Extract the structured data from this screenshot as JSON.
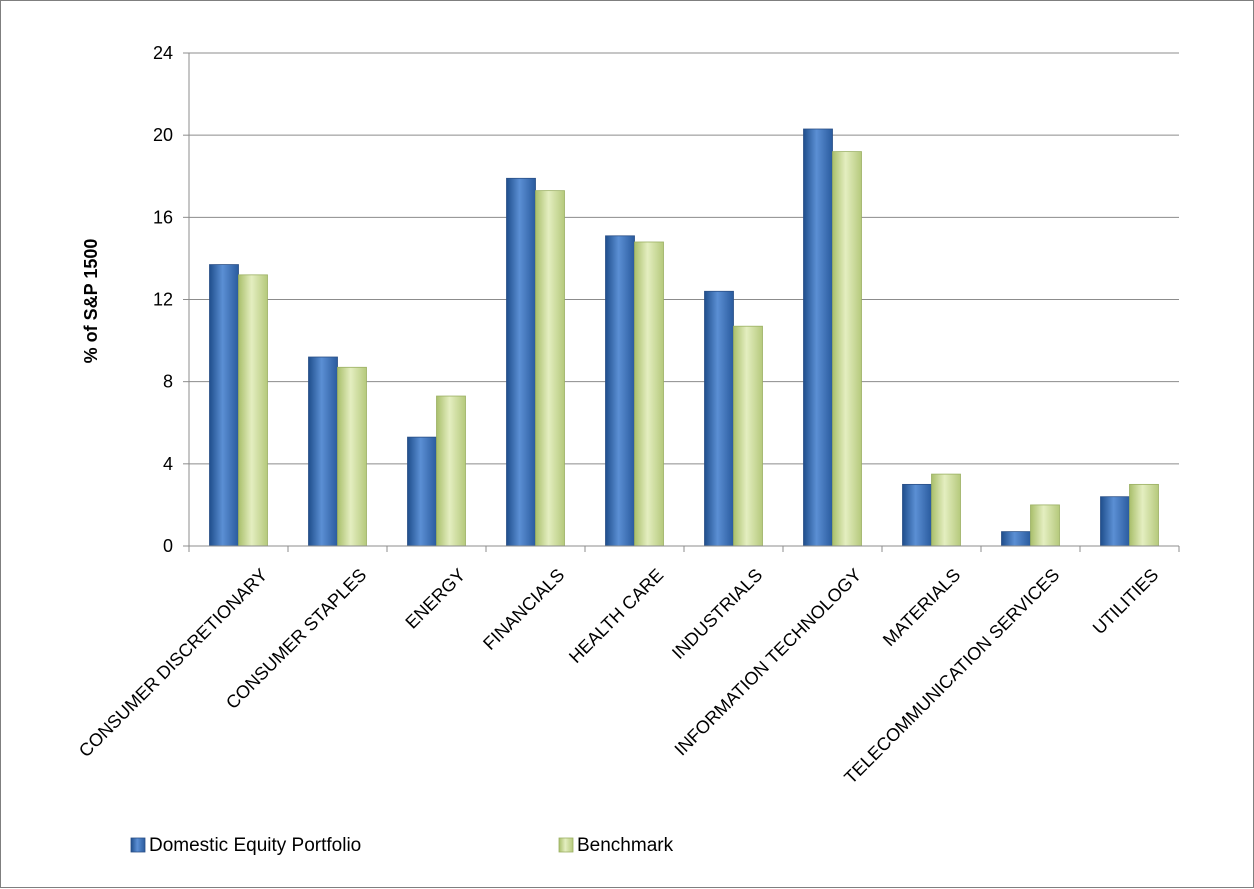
{
  "chart_data": {
    "type": "bar",
    "categories": [
      "CONSUMER DISCRETIONARY",
      "CONSUMER STAPLES",
      "ENERGY",
      "FINANCIALS",
      "HEALTH CARE",
      "INDUSTRIALS",
      "INFORMATION TECHNOLOGY",
      "MATERIALS",
      "TELECOMMUNICATION SERVICES",
      "UTILITIES"
    ],
    "series": [
      {
        "name": "Domestic Equity Portfolio",
        "color": "#3a6fb5",
        "values": [
          13.7,
          9.2,
          5.3,
          17.9,
          15.1,
          12.4,
          20.3,
          3.0,
          0.7,
          2.4
        ]
      },
      {
        "name": "Benchmark",
        "color": "#c9dc93",
        "values": [
          13.2,
          8.7,
          7.3,
          17.3,
          14.8,
          10.7,
          19.2,
          3.5,
          2.0,
          3.0
        ]
      }
    ],
    "title": "",
    "xlabel": "",
    "ylabel": "% of S&P 1500",
    "ylim": [
      0,
      24
    ],
    "yticks": [
      0,
      4,
      8,
      12,
      16,
      20,
      24
    ],
    "grid": true,
    "legend_position": "bottom"
  }
}
